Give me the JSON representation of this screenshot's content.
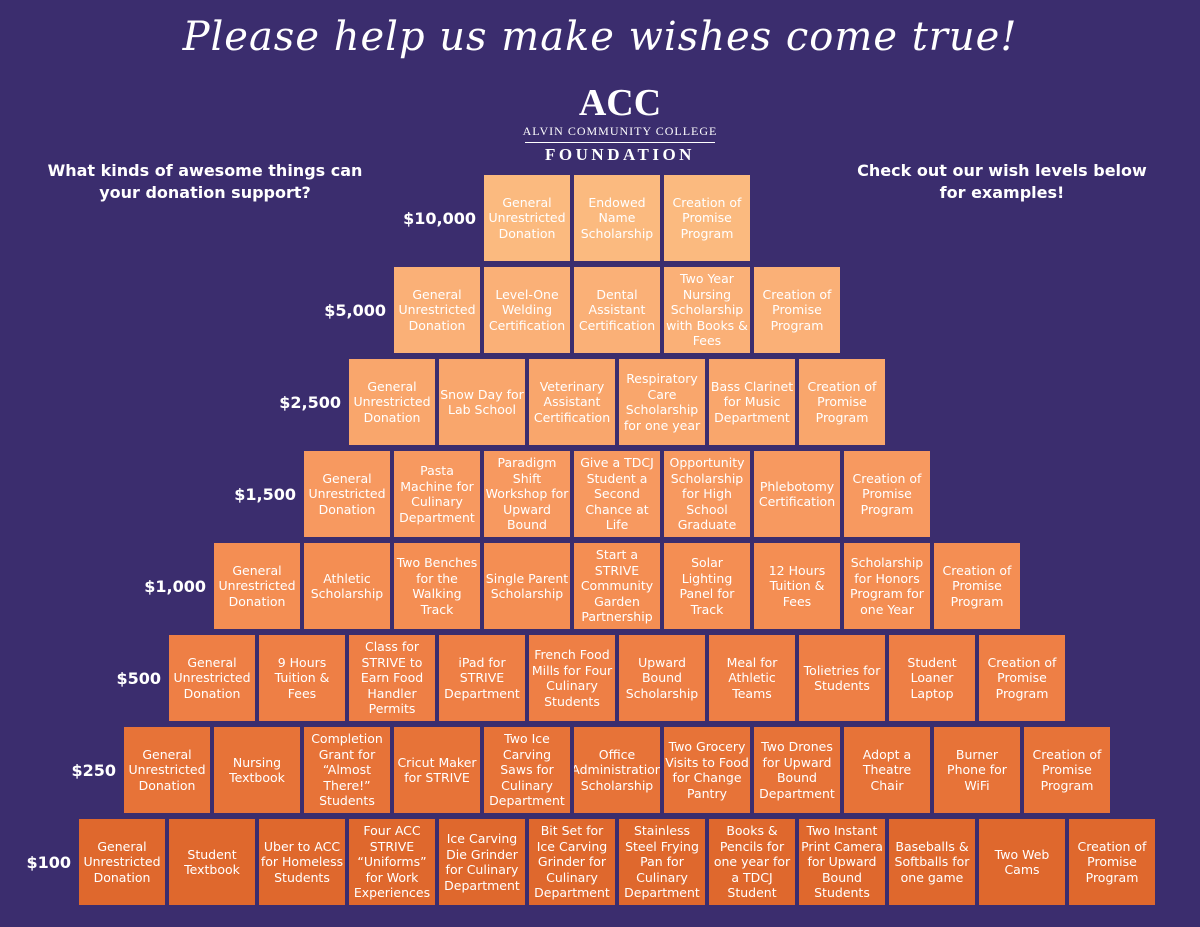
{
  "headline": "Please help us make wishes come true!",
  "logo": {
    "mark": "ACC",
    "line1": "ALVIN COMMUNITY COLLEGE",
    "line2": "FOUNDATION"
  },
  "left_note": "What kinds of awesome things can your donation support?",
  "right_note": "Check out our wish levels below for examples!",
  "tiers": [
    {
      "amount": "$10,000",
      "color": "#fbba7f",
      "items": [
        "General Unrestricted Donation",
        "Endowed Name Scholarship",
        "Creation of Promise Program"
      ]
    },
    {
      "amount": "$5,000",
      "color": "#fab077",
      "items": [
        "General Unrestricted Donation",
        "Level-One Welding Certification",
        "Dental Assistant Certification",
        "Two Year Nursing Scholarship with Books & Fees",
        "Creation of Promise Program"
      ]
    },
    {
      "amount": "$2,500",
      "color": "#f9a66c",
      "items": [
        "General Unrestricted Donation",
        "Snow Day for Lab School",
        "Veterinary Assistant Certification",
        "Respiratory Care Scholarship for one year",
        "Bass Clarinet for Music Department",
        "Creation of Promise Program"
      ]
    },
    {
      "amount": "$1,500",
      "color": "#f79960",
      "items": [
        "General Unrestricted Donation",
        "Pasta Machine for Culinary Department",
        "Paradigm Shift Workshop for Upward Bound",
        "Give a TDCJ Student a Second Chance at Life",
        "Opportunity Scholarship for High School Graduate",
        "Phlebotomy Certification",
        "Creation of Promise Program"
      ]
    },
    {
      "amount": "$1,000",
      "color": "#f48e53",
      "items": [
        "General Unrestricted Donation",
        "Athletic Scholarship",
        "Two Benches for the Walking Track",
        "Single Parent Scholarship",
        "Start a STRIVE Community Garden Partnership",
        "Solar Lighting Panel for Track",
        "12 Hours Tuition & Fees",
        "Scholarship for Honors Program for one Year",
        "Creation of Promise Program"
      ]
    },
    {
      "amount": "$500",
      "color": "#ee7f45",
      "items": [
        "General Unrestricted Donation",
        "9 Hours Tuition & Fees",
        "Class for STRIVE to Earn Food Handler Permits",
        "iPad for STRIVE Department",
        "French Food Mills for Four Culinary Students",
        "Upward Bound Scholarship",
        "Meal for Athletic Teams",
        "Tolietries for Students",
        "Student Loaner Laptop",
        "Creation of Promise Program"
      ]
    },
    {
      "amount": "$250",
      "color": "#e77338",
      "items": [
        "General Unrestricted Donation",
        "Nursing Textbook",
        "Completion Grant for “Almost There!” Students",
        "Cricut Maker for STRIVE",
        "Two Ice Carving Saws for Culinary Department",
        "Office Administration Scholarship",
        "Two Grocery Visits to Food for Change Pantry",
        "Two Drones for Upward Bound Department",
        "Adopt a Theatre Chair",
        "Burner Phone for WiFi",
        "Creation of Promise Program"
      ]
    },
    {
      "amount": "$100",
      "color": "#df682d",
      "items": [
        "General Unrestricted Donation",
        "Student Textbook",
        "Uber to ACC for Homeless Students",
        "Four ACC STRIVE “Uniforms” for Work Experiences",
        "Ice Carving Die Grinder for Culinary Department",
        "Bit Set for Ice Carving Grinder for Culinary Department",
        "Stainless Steel Frying Pan for Culinary Department",
        "Books & Pencils for one year for a TDCJ Student",
        "Two Instant Print Camera for Upward Bound Students",
        "Baseballs & Softballs for one game",
        "Two Web Cams",
        "Creation of Promise Program"
      ]
    }
  ]
}
